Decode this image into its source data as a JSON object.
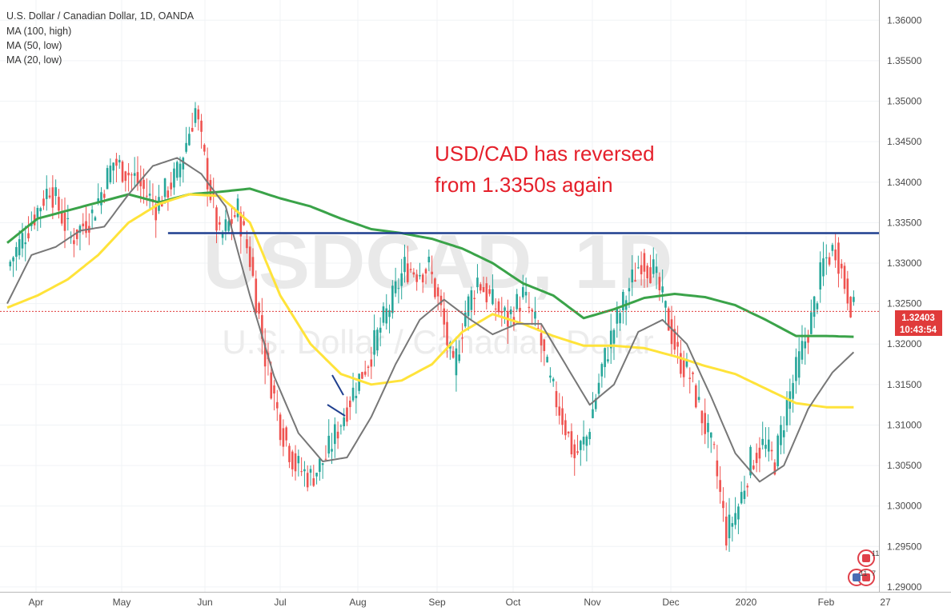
{
  "header": {
    "title": "U.S. Dollar / Canadian Dollar, 1D, OANDA",
    "indicators": [
      "MA (100, high)",
      "MA (50, low)",
      "MA (20, low)"
    ]
  },
  "watermark": {
    "symbol": "USDCAD, 1D",
    "name": "U.S. Dollar / Canadian Dollar"
  },
  "annotation": {
    "line1": "USD/CAD has reversed",
    "line2": "from 1.3350s again"
  },
  "price_tag": {
    "price": "1.32403",
    "countdown": "10:43:54",
    "color": "#e03b3b"
  },
  "events": {
    "badge_top": "11",
    "badge_bottom_left": "11",
    "badge_bottom_right": "7"
  },
  "colors": {
    "bull": "#26a69a",
    "bear": "#ef5350",
    "ma100": "#3aa349",
    "ma50": "#ffe33a",
    "ma20": "#777777",
    "resistance": "#1f3f8f",
    "annotation": "#e5202b"
  },
  "chart_data": {
    "type": "candlestick",
    "symbol": "USD/CAD",
    "timeframe": "1D",
    "y_ticks": [
      "1.36000",
      "1.35500",
      "1.35000",
      "1.34500",
      "1.34000",
      "1.33500",
      "1.33000",
      "1.32500",
      "1.32000",
      "1.31500",
      "1.31000",
      "1.30500",
      "1.30000",
      "1.29500",
      "1.29000"
    ],
    "ylim": [
      1.2894,
      1.3625
    ],
    "x_ticks": [
      "Apr",
      "May",
      "Jun",
      "Jul",
      "Aug",
      "Sep",
      "Oct",
      "Nov",
      "Dec",
      "2020",
      "Feb",
      "27"
    ],
    "close_path": [
      [
        0,
        1.3295
      ],
      [
        7,
        1.3345
      ],
      [
        14,
        1.3395
      ],
      [
        21,
        1.333
      ],
      [
        28,
        1.336
      ],
      [
        35,
        1.3425
      ],
      [
        42,
        1.3405
      ],
      [
        49,
        1.337
      ],
      [
        56,
        1.341
      ],
      [
        62,
        1.349
      ],
      [
        66,
        1.3405
      ],
      [
        70,
        1.333
      ],
      [
        76,
        1.3365
      ],
      [
        80,
        1.3305
      ],
      [
        85,
        1.3185
      ],
      [
        90,
        1.31
      ],
      [
        95,
        1.305
      ],
      [
        100,
        1.3035
      ],
      [
        105,
        1.306
      ],
      [
        110,
        1.3105
      ],
      [
        115,
        1.315
      ],
      [
        119,
        1.318
      ],
      [
        123,
        1.322
      ],
      [
        127,
        1.3255
      ],
      [
        131,
        1.3295
      ],
      [
        135,
        1.329
      ],
      [
        139,
        1.3295
      ],
      [
        143,
        1.324
      ],
      [
        147,
        1.3165
      ],
      [
        151,
        1.324
      ],
      [
        155,
        1.328
      ],
      [
        160,
        1.325
      ],
      [
        165,
        1.323
      ],
      [
        170,
        1.326
      ],
      [
        175,
        1.3215
      ],
      [
        179,
        1.315
      ],
      [
        183,
        1.311
      ],
      [
        187,
        1.306
      ],
      [
        191,
        1.3085
      ],
      [
        196,
        1.317
      ],
      [
        200,
        1.322
      ],
      [
        205,
        1.327
      ],
      [
        209,
        1.3305
      ],
      [
        213,
        1.329
      ],
      [
        217,
        1.324
      ],
      [
        221,
        1.3185
      ],
      [
        225,
        1.316
      ],
      [
        229,
        1.311
      ],
      [
        233,
        1.306
      ],
      [
        237,
        1.2965
      ],
      [
        241,
        1.3
      ],
      [
        245,
        1.3055
      ],
      [
        249,
        1.3075
      ],
      [
        253,
        1.3055
      ],
      [
        257,
        1.3125
      ],
      [
        261,
        1.318
      ],
      [
        265,
        1.323
      ],
      [
        269,
        1.33
      ],
      [
        273,
        1.332
      ],
      [
        276,
        1.3275
      ],
      [
        279,
        1.324
      ]
    ],
    "series": [
      {
        "name": "MA (100, high)",
        "color": "#3aa349",
        "points": [
          [
            0,
            1.3325
          ],
          [
            10,
            1.3355
          ],
          [
            20,
            1.3365
          ],
          [
            30,
            1.3375
          ],
          [
            40,
            1.3385
          ],
          [
            50,
            1.3375
          ],
          [
            60,
            1.3385
          ],
          [
            70,
            1.3388
          ],
          [
            80,
            1.3392
          ],
          [
            90,
            1.338
          ],
          [
            100,
            1.337
          ],
          [
            110,
            1.3355
          ],
          [
            120,
            1.3342
          ],
          [
            130,
            1.3337
          ],
          [
            140,
            1.333
          ],
          [
            150,
            1.3318
          ],
          [
            160,
            1.33
          ],
          [
            170,
            1.3275
          ],
          [
            180,
            1.326
          ],
          [
            190,
            1.3232
          ],
          [
            200,
            1.3243
          ],
          [
            210,
            1.3257
          ],
          [
            220,
            1.3262
          ],
          [
            230,
            1.3258
          ],
          [
            240,
            1.3248
          ],
          [
            250,
            1.323
          ],
          [
            260,
            1.321
          ],
          [
            270,
            1.321
          ],
          [
            279,
            1.3209
          ]
        ]
      },
      {
        "name": "MA (50, low)",
        "color": "#ffe33a",
        "points": [
          [
            0,
            1.3245
          ],
          [
            10,
            1.326
          ],
          [
            20,
            1.328
          ],
          [
            30,
            1.331
          ],
          [
            40,
            1.335
          ],
          [
            50,
            1.3373
          ],
          [
            60,
            1.3385
          ],
          [
            70,
            1.3383
          ],
          [
            80,
            1.335
          ],
          [
            90,
            1.326
          ],
          [
            100,
            1.32
          ],
          [
            110,
            1.3163
          ],
          [
            120,
            1.315
          ],
          [
            130,
            1.3155
          ],
          [
            140,
            1.3175
          ],
          [
            150,
            1.3215
          ],
          [
            160,
            1.3237
          ],
          [
            170,
            1.3225
          ],
          [
            180,
            1.321
          ],
          [
            190,
            1.3198
          ],
          [
            200,
            1.3198
          ],
          [
            210,
            1.3195
          ],
          [
            220,
            1.3185
          ],
          [
            230,
            1.3173
          ],
          [
            240,
            1.3163
          ],
          [
            250,
            1.3145
          ],
          [
            260,
            1.3127
          ],
          [
            270,
            1.3122
          ],
          [
            279,
            1.3122
          ]
        ]
      },
      {
        "name": "MA (20, low)",
        "color": "#777777",
        "points": [
          [
            0,
            1.325
          ],
          [
            8,
            1.331
          ],
          [
            16,
            1.332
          ],
          [
            24,
            1.334
          ],
          [
            32,
            1.3345
          ],
          [
            40,
            1.3385
          ],
          [
            48,
            1.342
          ],
          [
            56,
            1.343
          ],
          [
            64,
            1.341
          ],
          [
            72,
            1.337
          ],
          [
            80,
            1.326
          ],
          [
            88,
            1.316
          ],
          [
            96,
            1.309
          ],
          [
            104,
            1.3055
          ],
          [
            112,
            1.306
          ],
          [
            120,
            1.311
          ],
          [
            128,
            1.3175
          ],
          [
            136,
            1.323
          ],
          [
            144,
            1.3255
          ],
          [
            152,
            1.3232
          ],
          [
            160,
            1.3212
          ],
          [
            168,
            1.3225
          ],
          [
            176,
            1.3225
          ],
          [
            184,
            1.3175
          ],
          [
            192,
            1.3125
          ],
          [
            200,
            1.315
          ],
          [
            208,
            1.3215
          ],
          [
            216,
            1.323
          ],
          [
            224,
            1.32
          ],
          [
            232,
            1.3135
          ],
          [
            240,
            1.3065
          ],
          [
            248,
            1.303
          ],
          [
            256,
            1.305
          ],
          [
            264,
            1.312
          ],
          [
            272,
            1.3165
          ],
          [
            279,
            1.319
          ]
        ]
      }
    ],
    "resistance_level": 1.3337,
    "resistance_start_bar": 53
  }
}
